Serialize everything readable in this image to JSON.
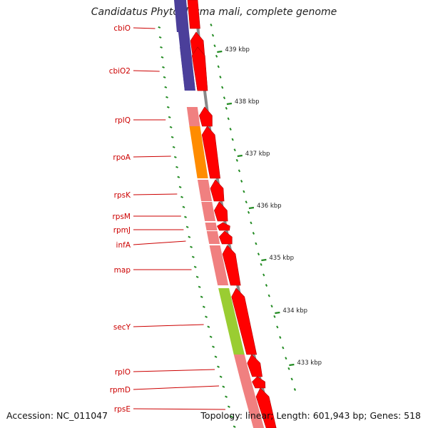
{
  "title": "Candidatus Phytoplasma mali, complete genome",
  "accession": "Accession: NC_011047",
  "stats": "Topology: linear; Length: 601,943 bp; Genes: 518",
  "colors": {
    "forward_gene": "#ff0000",
    "ribosomal": "#f08080",
    "cbiO": "#4b3f9a",
    "rpoA": "#ff8c00",
    "secY": "#9acd32",
    "gene_label": "#cc0000",
    "tick": "#228b22",
    "backbone": "#888888"
  },
  "scale_labels": [
    {
      "kbp": 439,
      "text": "439 kbp"
    },
    {
      "kbp": 438,
      "text": "438 kbp"
    },
    {
      "kbp": 437,
      "text": "437 kbp"
    },
    {
      "kbp": 436,
      "text": "436 kbp"
    },
    {
      "kbp": 435,
      "text": "435 kbp"
    },
    {
      "kbp": 434,
      "text": "434 kbp"
    },
    {
      "kbp": 433,
      "text": "433 kbp"
    }
  ],
  "genes": [
    {
      "name": "cbiO",
      "color_key": "cbiO"
    },
    {
      "name": "cbiO2",
      "color_key": "cbiO"
    },
    {
      "name": "rplQ",
      "color_key": "ribosomal"
    },
    {
      "name": "rpoA",
      "color_key": "rpoA"
    },
    {
      "name": "rpsK",
      "color_key": "ribosomal"
    },
    {
      "name": "rpsM",
      "color_key": "ribosomal"
    },
    {
      "name": "rpmJ",
      "color_key": "ribosomal"
    },
    {
      "name": "infA",
      "color_key": "ribosomal"
    },
    {
      "name": "map",
      "color_key": "ribosomal"
    },
    {
      "name": "secY",
      "color_key": "secY"
    },
    {
      "name": "rplO",
      "color_key": "ribosomal"
    },
    {
      "name": "rpmD",
      "color_key": "ribosomal"
    },
    {
      "name": "rpsE",
      "color_key": "ribosomal"
    }
  ]
}
